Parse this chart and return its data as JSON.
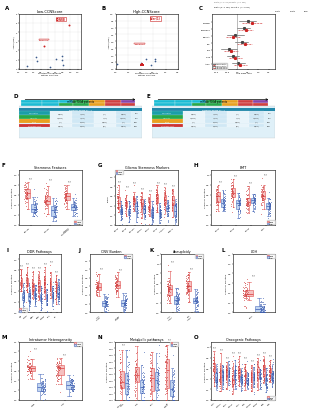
{
  "panel_A_title": "Low-CCNScore",
  "panel_B_title": "High-CCNScore",
  "panel_F_title": "Stemness Features",
  "panel_G_title": "Glioma Stemness Markers",
  "panel_H_title": "EMT",
  "panel_I_title": "DDR Pathways",
  "panel_J_title": "CNV Burden",
  "panel_K_title": "Aneuploidy",
  "panel_L_title": "LOH",
  "panel_M_title": "Intratumor Heterogeneity",
  "panel_N_title": "Metabolic pathways",
  "panel_O_title": "Oncogenic Pathways",
  "high_box_color": "#f5c0c0",
  "low_box_color": "#c0d4f0",
  "high_edge_color": "#e05050",
  "low_edge_color": "#5070c0",
  "high_scatter_color": "#d04040",
  "low_scatter_color": "#4060b0",
  "ylabel_common": "Score or Fraction",
  "panel_F_groups": [
    "RNAss",
    "DNAss",
    "mRNAi\nStemness"
  ],
  "panel_G_groups": [
    "CD44",
    "CD15",
    "CD133",
    "OLIG2",
    "SOX2",
    "OCT4",
    "ALDH1",
    "SSEA1"
  ],
  "panel_H_groups": [
    "EMT1",
    "EMT2",
    "EMT3",
    "MES"
  ],
  "panel_I_groups": [
    "HR",
    "MMR",
    "NER",
    "BER",
    "DSBR",
    "TLS",
    "FA"
  ],
  "panel_J_groups": [
    "Arm\nLevel",
    "Focal\nLevel"
  ],
  "panel_K_groups": [
    "Arm\nAneu",
    "Chr\nAneu"
  ],
  "panel_L_groups": [
    "LOH"
  ],
  "panel_M_groups": [
    "High",
    "Low"
  ],
  "panel_N_groups": [
    "Glyco-\nlysis",
    "PPP",
    "TCA",
    "FA\nMeta"
  ],
  "panel_O_groups": [
    "Wnt",
    "Notch",
    "PI3K",
    "MAPK",
    "MYC",
    "E2F",
    "mTOR",
    "TGFB",
    "p53",
    "Ras"
  ]
}
